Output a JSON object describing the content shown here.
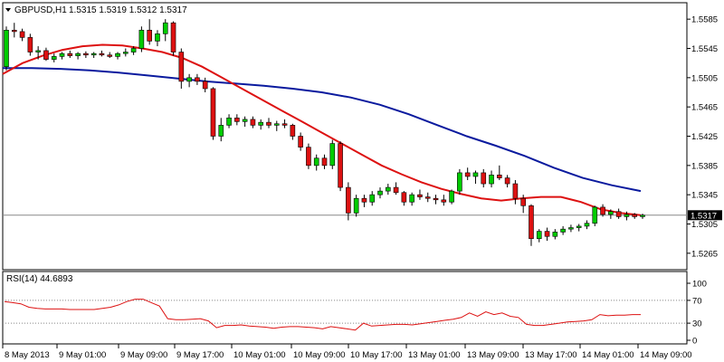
{
  "chart_data": {
    "type": "candlestick",
    "symbol_label": "GBPUSD,H1",
    "ohlc_label": "1.5315 1.5319 1.5312 1.5317",
    "last_price": "1.5317",
    "price_ticks": [
      "1.5585",
      "1.5545",
      "1.5505",
      "1.5465",
      "1.5425",
      "1.5385",
      "1.5345",
      "1.5305",
      "1.5265"
    ],
    "price_range": [
      1.5245,
      1.5605
    ],
    "x_ticks": [
      "8 May 2013",
      "9 May 01:00",
      "9 May 09:00",
      "9 May 17:00",
      "10 May 01:00",
      "10 May 09:00",
      "10 May 17:00",
      "13 May 01:00",
      "13 May 09:00",
      "13 May 17:00",
      "14 May 01:00",
      "14 May 09:00"
    ],
    "candles": [
      [
        1.552,
        1.5575,
        1.5515,
        1.557
      ],
      [
        1.557,
        1.558,
        1.556,
        1.5568
      ],
      [
        1.5568,
        1.5572,
        1.5555,
        1.556
      ],
      [
        1.556,
        1.5565,
        1.5535,
        1.554
      ],
      [
        1.554,
        1.5548,
        1.553,
        1.5542
      ],
      [
        1.5542,
        1.5546,
        1.5528,
        1.553
      ],
      [
        1.553,
        1.5538,
        1.5526,
        1.5534
      ],
      [
        1.5534,
        1.554,
        1.553,
        1.5538
      ],
      [
        1.5538,
        1.5542,
        1.5532,
        1.5535
      ],
      [
        1.5535,
        1.554,
        1.553,
        1.5538
      ],
      [
        1.5538,
        1.5541,
        1.5532,
        1.5536
      ],
      [
        1.5536,
        1.554,
        1.5532,
        1.5538
      ],
      [
        1.5538,
        1.5542,
        1.5534,
        1.5536
      ],
      [
        1.5536,
        1.554,
        1.5532,
        1.5534
      ],
      [
        1.5534,
        1.554,
        1.553,
        1.5538
      ],
      [
        1.5538,
        1.5545,
        1.5534,
        1.554
      ],
      [
        1.554,
        1.5548,
        1.5536,
        1.5545
      ],
      [
        1.5545,
        1.5575,
        1.554,
        1.557
      ],
      [
        1.557,
        1.5585,
        1.555,
        1.5555
      ],
      [
        1.5555,
        1.557,
        1.5548,
        1.5565
      ],
      [
        1.5565,
        1.5585,
        1.5555,
        1.558
      ],
      [
        1.558,
        1.5582,
        1.5535,
        1.554
      ],
      [
        1.554,
        1.5545,
        1.549,
        1.55
      ],
      [
        1.55,
        1.551,
        1.5492,
        1.5505
      ],
      [
        1.5505,
        1.551,
        1.5495,
        1.55
      ],
      [
        1.55,
        1.5505,
        1.5485,
        1.549
      ],
      [
        1.549,
        1.5492,
        1.542,
        1.5425
      ],
      [
        1.5425,
        1.545,
        1.5418,
        1.544
      ],
      [
        1.544,
        1.5455,
        1.5436,
        1.545
      ],
      [
        1.545,
        1.5455,
        1.544,
        1.5445
      ],
      [
        1.5445,
        1.5452,
        1.5438,
        1.5448
      ],
      [
        1.5448,
        1.5452,
        1.5436,
        1.544
      ],
      [
        1.544,
        1.5448,
        1.5434,
        1.5444
      ],
      [
        1.5444,
        1.545,
        1.5436,
        1.544
      ],
      [
        1.544,
        1.5446,
        1.5432,
        1.5442
      ],
      [
        1.5442,
        1.5448,
        1.5436,
        1.544
      ],
      [
        1.544,
        1.5442,
        1.542,
        1.5425
      ],
      [
        1.5425,
        1.543,
        1.5405,
        1.541
      ],
      [
        1.541,
        1.5415,
        1.538,
        1.5385
      ],
      [
        1.5385,
        1.54,
        1.5378,
        1.5395
      ],
      [
        1.5395,
        1.54,
        1.538,
        1.5385
      ],
      [
        1.5385,
        1.542,
        1.538,
        1.5415
      ],
      [
        1.5415,
        1.5418,
        1.535,
        1.5355
      ],
      [
        1.5355,
        1.5362,
        1.531,
        1.532
      ],
      [
        1.532,
        1.5345,
        1.5315,
        1.534
      ],
      [
        1.534,
        1.5345,
        1.5328,
        1.5335
      ],
      [
        1.5335,
        1.535,
        1.533,
        1.5345
      ],
      [
        1.5345,
        1.5355,
        1.534,
        1.535
      ],
      [
        1.535,
        1.536,
        1.5345,
        1.5355
      ],
      [
        1.5355,
        1.5362,
        1.5345,
        1.5348
      ],
      [
        1.5348,
        1.535,
        1.533,
        1.5335
      ],
      [
        1.5335,
        1.5348,
        1.533,
        1.5345
      ],
      [
        1.5345,
        1.5352,
        1.5338,
        1.5342
      ],
      [
        1.5342,
        1.5348,
        1.5335,
        1.534
      ],
      [
        1.534,
        1.5345,
        1.5332,
        1.5338
      ],
      [
        1.5338,
        1.5345,
        1.533,
        1.5335
      ],
      [
        1.5335,
        1.5352,
        1.5332,
        1.535
      ],
      [
        1.535,
        1.538,
        1.5345,
        1.5375
      ],
      [
        1.5375,
        1.5382,
        1.5365,
        1.537
      ],
      [
        1.537,
        1.5378,
        1.536,
        1.5375
      ],
      [
        1.5375,
        1.538,
        1.5355,
        1.536
      ],
      [
        1.536,
        1.5378,
        1.5355,
        1.5372
      ],
      [
        1.5372,
        1.5385,
        1.5365,
        1.5368
      ],
      [
        1.5368,
        1.5372,
        1.5355,
        1.536
      ],
      [
        1.536,
        1.5365,
        1.5332,
        1.534
      ],
      [
        1.534,
        1.5345,
        1.532,
        1.533
      ],
      [
        1.533,
        1.5332,
        1.5275,
        1.5285
      ],
      [
        1.5285,
        1.5298,
        1.528,
        1.5295
      ],
      [
        1.5295,
        1.53,
        1.5282,
        1.5288
      ],
      [
        1.5288,
        1.5298,
        1.5284,
        1.5294
      ],
      [
        1.5294,
        1.5302,
        1.529,
        1.5298
      ],
      [
        1.5298,
        1.5304,
        1.5294,
        1.53
      ],
      [
        1.53,
        1.5305,
        1.5295,
        1.5302
      ],
      [
        1.5302,
        1.531,
        1.5298,
        1.5306
      ],
      [
        1.5306,
        1.533,
        1.5302,
        1.5328
      ],
      [
        1.5328,
        1.5332,
        1.5315,
        1.5318
      ],
      [
        1.5318,
        1.5325,
        1.5312,
        1.5322
      ],
      [
        1.5322,
        1.5326,
        1.5312,
        1.5315
      ],
      [
        1.5315,
        1.5322,
        1.531,
        1.5318
      ],
      [
        1.5318,
        1.532,
        1.5312,
        1.5315
      ],
      [
        1.5315,
        1.5319,
        1.5312,
        1.5317
      ]
    ],
    "ma_fast": [
      1.551,
      1.5525,
      1.5535,
      1.5543,
      1.5548,
      1.555,
      1.5549,
      1.5545,
      1.554,
      1.5532,
      1.552,
      1.5505,
      1.549,
      1.5475,
      1.546,
      1.5445,
      1.543,
      1.5415,
      1.54,
      1.5385,
      1.5373,
      1.5362,
      1.5353,
      1.5346,
      1.534,
      1.5337,
      1.534,
      1.5342,
      1.5342,
      1.5335,
      1.5325,
      1.532,
      1.5317
    ],
    "ma_slow": [
      1.5518,
      1.5518,
      1.5517,
      1.5515,
      1.5512,
      1.5508,
      1.5504,
      1.55,
      1.5497,
      1.5494,
      1.549,
      1.5485,
      1.5478,
      1.5468,
      1.5455,
      1.544,
      1.5425,
      1.5412,
      1.5398,
      1.5382,
      1.5368,
      1.5358,
      1.535
    ],
    "rsi_label": "RSI(14) 44.6893",
    "rsi_ticks": [
      "100",
      "70",
      "30",
      "0"
    ],
    "rsi_levels": [
      70,
      30
    ],
    "rsi": [
      68,
      66,
      64,
      58,
      56,
      55,
      55,
      55,
      54,
      54,
      54,
      54,
      56,
      58,
      62,
      68,
      72,
      72,
      66,
      60,
      38,
      36,
      36,
      37,
      38,
      34,
      22,
      26,
      26,
      27,
      25,
      24,
      23,
      21,
      23,
      24,
      24,
      23,
      22,
      20,
      24,
      22,
      20,
      18,
      30,
      25,
      26,
      27,
      28,
      28,
      27,
      29,
      31,
      33,
      35,
      37,
      40,
      48,
      42,
      50,
      45,
      48,
      42,
      40,
      28,
      26,
      26,
      28,
      30,
      32,
      33,
      34,
      36,
      45,
      43,
      44,
      44,
      45,
      45
    ]
  },
  "colors": {
    "bull": "#00cc00",
    "bear": "#dd1111",
    "ma_fast": "#dd1111",
    "ma_slow": "#0a1a9e",
    "rsi": "#dd1111",
    "grid_dotted": "#888888"
  }
}
